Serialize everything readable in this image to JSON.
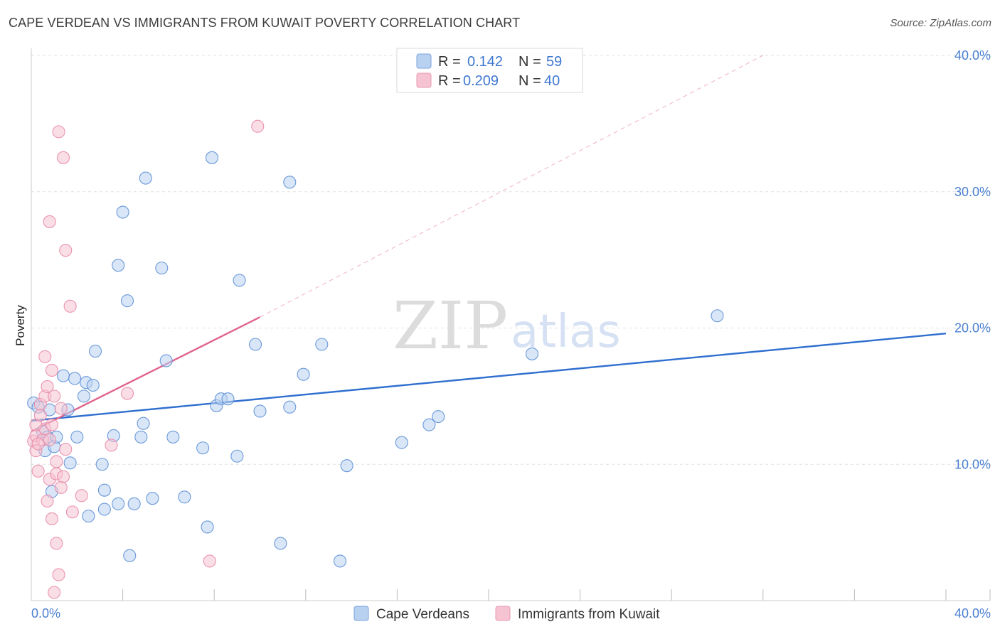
{
  "title": "CAPE VERDEAN VS IMMIGRANTS FROM KUWAIT POVERTY CORRELATION CHART",
  "source": "Source: ZipAtlas.com",
  "watermark": {
    "zip": "ZIP",
    "atlas": "atlas"
  },
  "colors": {
    "blue": "#5b8fd6",
    "blue_fill": "#b9d1f1",
    "blue_line": "#2f6fcf",
    "pink": "#e88aa8",
    "pink_fill": "#f6c3d2",
    "pink_line": "#e0648e",
    "grid": "#dddddd",
    "tick_text": "#4a7fd0"
  },
  "legend": {
    "rows": [
      {
        "r_label": "R =",
        "r_value": "0.142",
        "n_label": "N =",
        "n_value": "59"
      },
      {
        "r_label": "R =",
        "r_value": "0.209",
        "n_label": "N =",
        "n_value": "40"
      }
    ]
  },
  "chart_data": {
    "type": "scatter",
    "title": "CAPE VERDEAN VS IMMIGRANTS FROM KUWAIT POVERTY CORRELATION CHART",
    "xlabel": "",
    "ylabel": "Poverty",
    "xlim": [
      0,
      40
    ],
    "ylim": [
      0,
      40
    ],
    "x_tick_labels": [
      "0.0%",
      "40.0%"
    ],
    "y_ticks": [
      10,
      20,
      30,
      40
    ],
    "y_tick_labels": [
      "10.0%",
      "20.0%",
      "30.0%",
      "40.0%"
    ],
    "x_minor_ticks": [
      4,
      8,
      12,
      16,
      20,
      24,
      28,
      32,
      36,
      40
    ],
    "grid": true,
    "series": [
      {
        "name": "Cape Verdeans",
        "color": "#5b8fd6",
        "trend": {
          "x": [
            0,
            40
          ],
          "y": [
            13.2,
            19.6
          ],
          "style": "solid"
        },
        "points": [
          [
            0.1,
            14.5
          ],
          [
            0.3,
            14.2
          ],
          [
            0.5,
            12.4
          ],
          [
            0.6,
            11.0
          ],
          [
            0.7,
            12.0
          ],
          [
            0.8,
            14.0
          ],
          [
            0.9,
            8.0
          ],
          [
            1.0,
            11.3
          ],
          [
            1.1,
            12.0
          ],
          [
            1.4,
            16.5
          ],
          [
            1.6,
            14.0
          ],
          [
            1.7,
            10.1
          ],
          [
            1.9,
            16.3
          ],
          [
            2.0,
            12.0
          ],
          [
            2.3,
            15.0
          ],
          [
            2.4,
            16.0
          ],
          [
            2.5,
            6.2
          ],
          [
            2.7,
            15.8
          ],
          [
            2.8,
            18.3
          ],
          [
            3.1,
            10.0
          ],
          [
            3.2,
            8.1
          ],
          [
            3.2,
            6.7
          ],
          [
            3.6,
            12.1
          ],
          [
            3.8,
            7.1
          ],
          [
            3.8,
            24.6
          ],
          [
            4.0,
            28.5
          ],
          [
            4.2,
            22.0
          ],
          [
            4.3,
            3.3
          ],
          [
            4.5,
            7.1
          ],
          [
            4.8,
            12.0
          ],
          [
            4.9,
            13.0
          ],
          [
            5.0,
            31.0
          ],
          [
            5.3,
            7.5
          ],
          [
            5.7,
            24.4
          ],
          [
            5.9,
            17.6
          ],
          [
            6.2,
            12.0
          ],
          [
            6.7,
            7.6
          ],
          [
            7.5,
            11.2
          ],
          [
            7.7,
            5.4
          ],
          [
            7.9,
            32.5
          ],
          [
            8.1,
            14.3
          ],
          [
            8.3,
            14.8
          ],
          [
            8.6,
            14.8
          ],
          [
            9.0,
            10.6
          ],
          [
            9.1,
            23.5
          ],
          [
            9.8,
            18.8
          ],
          [
            10.0,
            13.9
          ],
          [
            10.9,
            4.2
          ],
          [
            11.3,
            14.2
          ],
          [
            11.3,
            30.7
          ],
          [
            11.9,
            16.6
          ],
          [
            12.7,
            18.8
          ],
          [
            13.5,
            2.9
          ],
          [
            13.8,
            9.9
          ],
          [
            16.2,
            11.6
          ],
          [
            17.4,
            12.9
          ],
          [
            17.8,
            13.5
          ],
          [
            21.9,
            18.1
          ],
          [
            30.0,
            20.9
          ]
        ]
      },
      {
        "name": "Immigrants from Kuwait",
        "color": "#e88aa8",
        "trend": {
          "x": [
            0,
            10
          ],
          "y": [
            12.4,
            20.8
          ],
          "style": "solid",
          "extended": {
            "x": [
              10,
              32
            ],
            "y": [
              20.8,
              40.0
            ],
            "style": "dashed"
          }
        },
        "points": [
          [
            0.1,
            11.7
          ],
          [
            0.2,
            12.1
          ],
          [
            0.2,
            11.0
          ],
          [
            0.3,
            9.5
          ],
          [
            0.4,
            14.4
          ],
          [
            0.5,
            11.8
          ],
          [
            0.6,
            12.6
          ],
          [
            0.6,
            15.0
          ],
          [
            0.6,
            17.9
          ],
          [
            0.7,
            15.7
          ],
          [
            0.7,
            7.3
          ],
          [
            0.8,
            11.8
          ],
          [
            0.8,
            27.8
          ],
          [
            0.8,
            8.9
          ],
          [
            0.9,
            6.0
          ],
          [
            0.9,
            16.9
          ],
          [
            1.0,
            15.0
          ],
          [
            1.0,
            0.6
          ],
          [
            1.1,
            9.3
          ],
          [
            1.1,
            10.2
          ],
          [
            1.1,
            4.2
          ],
          [
            1.2,
            1.9
          ],
          [
            1.2,
            34.4
          ],
          [
            1.3,
            8.3
          ],
          [
            1.3,
            14.1
          ],
          [
            1.4,
            32.5
          ],
          [
            1.4,
            9.1
          ],
          [
            1.5,
            25.7
          ],
          [
            1.5,
            11.1
          ],
          [
            1.7,
            21.6
          ],
          [
            1.8,
            6.5
          ],
          [
            2.2,
            7.7
          ],
          [
            3.5,
            11.4
          ],
          [
            4.2,
            15.2
          ],
          [
            7.8,
            2.9
          ],
          [
            9.9,
            34.8
          ],
          [
            0.2,
            12.9
          ],
          [
            0.4,
            13.6
          ],
          [
            0.9,
            12.9
          ],
          [
            0.3,
            11.5
          ]
        ]
      }
    ]
  },
  "bottom_legend": {
    "items": [
      {
        "label": "Cape Verdeans"
      },
      {
        "label": "Immigrants from Kuwait"
      }
    ]
  }
}
